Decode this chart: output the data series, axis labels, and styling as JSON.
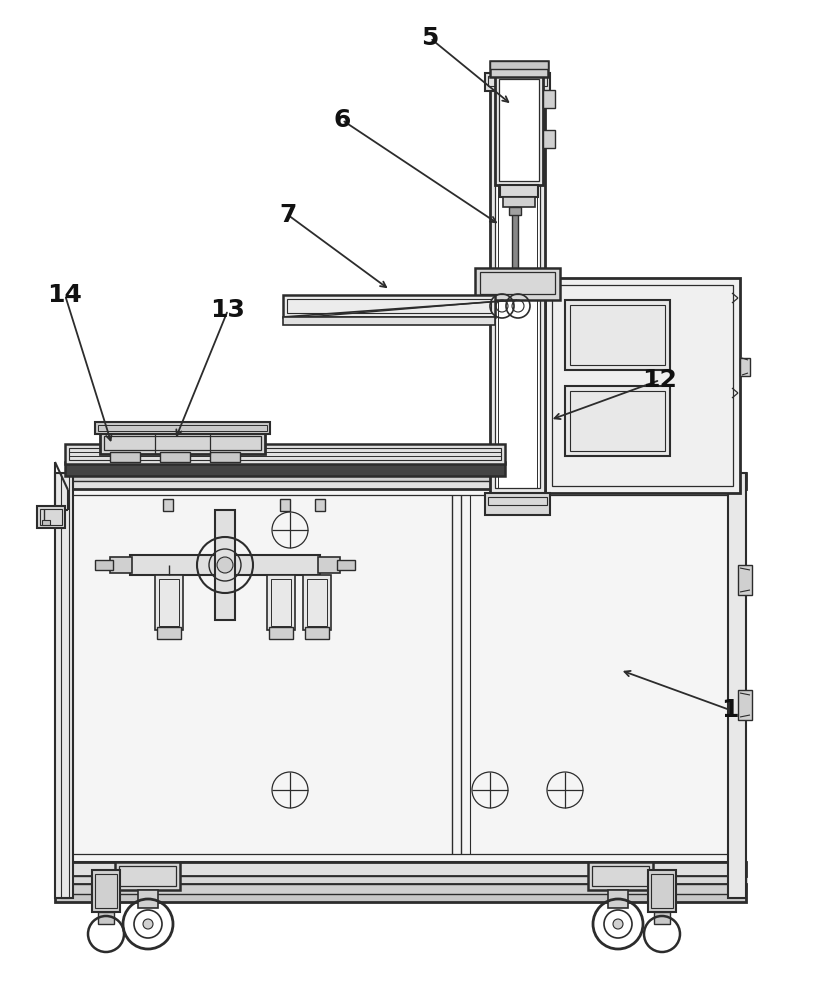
{
  "bg_color": "#ffffff",
  "lc": "#2c2c2c",
  "fig_width": 8.22,
  "fig_height": 10.0,
  "dpi": 100
}
